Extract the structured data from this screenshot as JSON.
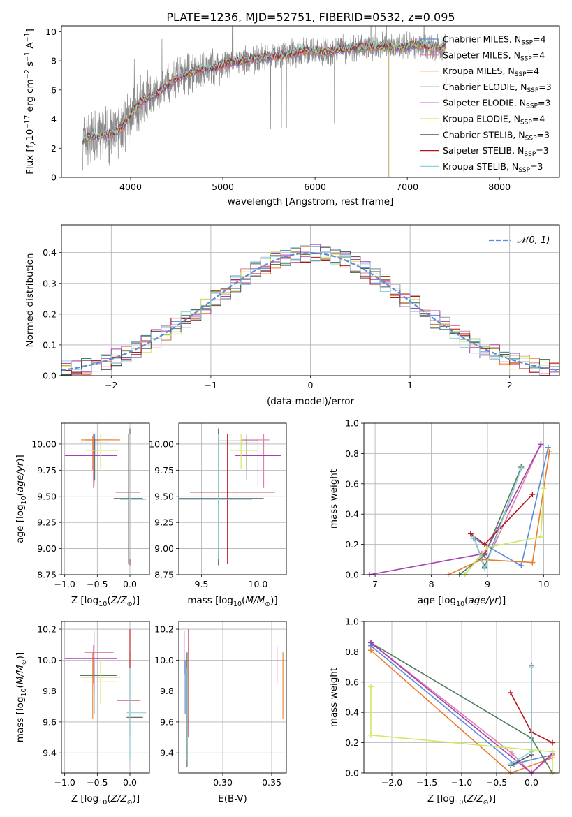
{
  "figure_title": "PLATE=1236, MJD=52751, FIBERID=0532, z=0.095",
  "colors": {
    "chabrier_miles": "#5b8bd9",
    "salpeter_miles": "#e07aa8",
    "kroupa_miles": "#e87d2e",
    "chabrier_elodie": "#4f7f5e",
    "salpeter_elodie": "#a63fb5",
    "kroupa_elodie": "#d2e85e",
    "chabrier_stelib": "#555555",
    "salpeter_stelib": "#b3171d",
    "kroupa_stelib": "#8fd3d8",
    "data": "#8a8a8a",
    "normal": "#5b8bd9",
    "grid": "#b0b0b0"
  },
  "legend": [
    {
      "label": "Chabrier MILES, N",
      "sub": "SSP",
      "tail": "=4",
      "color_key": "chabrier_miles"
    },
    {
      "label": "Salpeter MILES, N",
      "sub": "SSP",
      "tail": "=4",
      "color_key": "salpeter_miles"
    },
    {
      "label": "Kroupa MILES, N",
      "sub": "SSP",
      "tail": "=4",
      "color_key": "kroupa_miles"
    },
    {
      "label": "Chabrier ELODIE, N",
      "sub": "SSP",
      "tail": "=3",
      "color_key": "chabrier_elodie"
    },
    {
      "label": "Salpeter ELODIE, N",
      "sub": "SSP",
      "tail": "=3",
      "color_key": "salpeter_elodie"
    },
    {
      "label": "Kroupa ELODIE, N",
      "sub": "SSP",
      "tail": "=4",
      "color_key": "kroupa_elodie"
    },
    {
      "label": "Chabrier STELIB, N",
      "sub": "SSP",
      "tail": "=3",
      "color_key": "chabrier_stelib"
    },
    {
      "label": "Salpeter STELIB, N",
      "sub": "SSP",
      "tail": "=3",
      "color_key": "salpeter_stelib"
    },
    {
      "label": "Kroupa STELIB, N",
      "sub": "SSP",
      "tail": "=3",
      "color_key": "kroupa_stelib"
    }
  ],
  "chart_data": [
    {
      "id": "spectrum",
      "type": "line",
      "xlabel": "wavelength [Angstrom, rest frame]",
      "ylabel": "Flux [f",
      "ylabel_parts": [
        "Flux [f",
        "λ",
        "10",
        "−17",
        " erg cm",
        "−2",
        " s",
        "−1",
        " A",
        "−1",
        "]"
      ],
      "xlim": [
        3250,
        8650
      ],
      "ylim": [
        0,
        10.4
      ],
      "xticks": [
        4000,
        5000,
        6000,
        7000,
        8000
      ],
      "yticks": [
        0,
        2,
        4,
        6,
        8,
        10
      ],
      "grid": false,
      "legend_position": "upper right",
      "continuum": {
        "x": [
          3480,
          3600,
          3700,
          3800,
          3900,
          4000,
          4100,
          4200,
          4300,
          4400,
          4500,
          4700,
          4900,
          5100,
          5300,
          5500,
          5700,
          5900,
          6100,
          6300,
          6500,
          6700,
          6900,
          7100,
          7300,
          7420
        ],
        "y": [
          2.6,
          2.8,
          2.9,
          3.0,
          3.4,
          4.3,
          5.1,
          5.5,
          5.8,
          6.3,
          6.8,
          7.3,
          7.5,
          7.9,
          8.1,
          8.3,
          8.4,
          8.7,
          8.6,
          8.8,
          8.9,
          9.0,
          8.9,
          9.1,
          8.9,
          9.0
        ]
      },
      "data_x_range": [
        3480,
        7420
      ]
    },
    {
      "id": "residuals",
      "type": "histogram",
      "xlabel": "(data-model)/error",
      "ylabel": "Normed distribution",
      "xlim": [
        -2.5,
        2.5
      ],
      "ylim": [
        0,
        0.49
      ],
      "xticks": [
        -2,
        -1,
        0,
        1,
        2
      ],
      "yticks": [
        0.0,
        0.1,
        0.2,
        0.3,
        0.4
      ],
      "grid": true,
      "bin_width": 0.1,
      "normal_label": "𝒩(0, 1)",
      "legend_position": "upper right"
    },
    {
      "id": "age_vs_Z",
      "type": "errorbar",
      "xlabel": "Z [log",
      "xlabel_parts": [
        "Z [log",
        "10",
        "(Z/Z",
        "⊙",
        ")]"
      ],
      "ylabel_parts": [
        "age  [log",
        "10",
        "(age/yr)]"
      ],
      "xlim": [
        -1.05,
        0.3
      ],
      "ylim": [
        8.75,
        10.2
      ],
      "xticks": [
        -1.0,
        -0.5,
        0.0
      ],
      "yticks": [
        8.75,
        9.0,
        9.25,
        9.5,
        9.75,
        10.0
      ],
      "grid": true,
      "points": [
        {
          "c": "chabrier_miles",
          "x": -0.54,
          "xe": [
            -0.77,
            -0.3
          ],
          "y": 10.01,
          "ye": [
            9.9,
            10.1
          ]
        },
        {
          "c": "salpeter_miles",
          "x": -0.56,
          "xe": [
            -0.7,
            -0.25
          ],
          "y": 10.04,
          "ye": [
            9.58,
            10.1
          ]
        },
        {
          "c": "kroupa_miles",
          "x": -0.57,
          "xe": [
            -0.75,
            -0.15
          ],
          "y": 10.04,
          "ye": [
            9.75,
            10.08
          ]
        },
        {
          "c": "chabrier_elodie",
          "x": -0.54,
          "xe": [
            -0.7,
            -0.45
          ],
          "y": 10.03,
          "ye": [
            9.65,
            10.05
          ]
        },
        {
          "c": "salpeter_elodie",
          "x": -0.55,
          "xe": [
            -1.0,
            -0.2
          ],
          "y": 9.89,
          "ye": [
            9.6,
            10.06
          ]
        },
        {
          "c": "kroupa_elodie",
          "x": -0.45,
          "xe": [
            -0.68,
            -0.18
          ],
          "y": 9.94,
          "ye": [
            9.76,
            10.1
          ]
        },
        {
          "c": "chabrier_stelib",
          "x": 0.0,
          "xe": [
            -0.25,
            0.2
          ],
          "y": 9.48,
          "ye": [
            8.84,
            10.15
          ]
        },
        {
          "c": "salpeter_stelib",
          "x": -0.02,
          "xe": [
            -0.22,
            0.15
          ],
          "y": 9.54,
          "ye": [
            8.85,
            10.1
          ]
        },
        {
          "c": "kroupa_stelib",
          "x": 0.0,
          "xe": [
            -0.15,
            0.25
          ],
          "y": 9.47,
          "ye": [
            8.9,
            10.1
          ]
        }
      ]
    },
    {
      "id": "age_vs_mass",
      "type": "errorbar",
      "xlabel_parts": [
        "mass [log",
        "10",
        "(M/M",
        "⊙",
        ")]"
      ],
      "xlim": [
        9.3,
        10.25
      ],
      "ylim": [
        8.75,
        10.2
      ],
      "xticks": [
        9.5,
        10.0
      ],
      "yticks": [
        8.75,
        9.0,
        9.25,
        9.5,
        9.75,
        10.0
      ],
      "grid": true,
      "points": [
        {
          "c": "chabrier_miles",
          "x": 9.9,
          "xe": [
            9.65,
            10.0
          ],
          "y": 10.01,
          "ye": [
            9.9,
            10.1
          ]
        },
        {
          "c": "salpeter_miles",
          "x": 10.05,
          "xe": [
            9.85,
            10.1
          ],
          "y": 10.04,
          "ye": [
            9.58,
            10.1
          ]
        },
        {
          "c": "kroupa_miles",
          "x": 9.9,
          "xe": [
            9.65,
            10.0
          ],
          "y": 10.03,
          "ye": [
            9.75,
            10.08
          ]
        },
        {
          "c": "chabrier_elodie",
          "x": 9.9,
          "xe": [
            9.65,
            10.0
          ],
          "y": 10.03,
          "ye": [
            9.65,
            10.05
          ]
        },
        {
          "c": "salpeter_elodie",
          "x": 10.0,
          "xe": [
            9.8,
            10.2
          ],
          "y": 9.89,
          "ye": [
            9.6,
            10.06
          ]
        },
        {
          "c": "kroupa_elodie",
          "x": 9.85,
          "xe": [
            9.75,
            10.0
          ],
          "y": 9.94,
          "ye": [
            9.76,
            10.1
          ]
        },
        {
          "c": "chabrier_stelib",
          "x": 9.65,
          "xe": [
            9.3,
            10.05
          ],
          "y": 9.48,
          "ye": [
            8.84,
            10.15
          ]
        },
        {
          "c": "salpeter_stelib",
          "x": 9.73,
          "xe": [
            9.4,
            10.15
          ],
          "y": 9.54,
          "ye": [
            8.85,
            10.1
          ]
        },
        {
          "c": "kroupa_stelib",
          "x": 9.65,
          "xe": [
            9.3,
            9.95
          ],
          "y": 9.47,
          "ye": [
            8.9,
            10.1
          ]
        }
      ]
    },
    {
      "id": "weight_vs_age",
      "type": "line",
      "xlabel_parts": [
        "age  [log",
        "10",
        "(age/yr)]"
      ],
      "ylabel": "mass weight",
      "xlim": [
        6.8,
        10.28
      ],
      "ylim": [
        0,
        1.0
      ],
      "xticks": [
        7,
        8,
        9,
        10
      ],
      "yticks": [
        0.0,
        0.2,
        0.4,
        0.6,
        0.8,
        1.0
      ],
      "grid": true,
      "series": [
        {
          "c": "chabrier_miles",
          "x": [
            8.75,
            9.6,
            10.08
          ],
          "y": [
            0.24,
            0.06,
            0.84
          ]
        },
        {
          "c": "salpeter_miles",
          "x": [
            8.6,
            8.9,
            9.0,
            9.95
          ],
          "y": [
            0.0,
            0.14,
            0.1,
            0.86
          ]
        },
        {
          "c": "kroupa_miles",
          "x": [
            8.3,
            8.9,
            9.8,
            10.1
          ],
          "y": [
            0.0,
            0.1,
            0.08,
            0.81
          ]
        },
        {
          "c": "chabrier_elodie",
          "x": [
            8.5,
            8.95,
            9.6
          ],
          "y": [
            0.0,
            0.13,
            0.71
          ]
        },
        {
          "c": "salpeter_elodie",
          "x": [
            6.9,
            8.95,
            9.95
          ],
          "y": [
            0.0,
            0.14,
            0.86
          ]
        },
        {
          "c": "kroupa_elodie",
          "x": [
            8.6,
            9.0,
            9.95,
            10.0
          ],
          "y": [
            0.0,
            0.18,
            0.25,
            0.57
          ]
        },
        {
          "c": "chabrier_stelib",
          "x": [
            8.75,
            8.95,
            9.6
          ],
          "y": [
            0.25,
            0.05,
            0.7
          ]
        },
        {
          "c": "salpeter_stelib",
          "x": [
            8.7,
            8.95,
            9.8
          ],
          "y": [
            0.27,
            0.2,
            0.53
          ]
        },
        {
          "c": "kroupa_stelib",
          "x": [
            8.75,
            8.95,
            9.6
          ],
          "y": [
            0.25,
            0.04,
            0.7
          ]
        }
      ]
    },
    {
      "id": "mass_vs_Z",
      "type": "errorbar",
      "xlabel_parts": [
        "Z [log",
        "10",
        "(Z/Z",
        "⊙",
        ")]"
      ],
      "ylabel_parts": [
        "mass [log",
        "10",
        "(M/M",
        "⊙",
        ")]"
      ],
      "xlim": [
        -1.05,
        0.3
      ],
      "ylim": [
        9.27,
        10.25
      ],
      "xticks": [
        -1.0,
        -0.5,
        0.0
      ],
      "yticks": [
        9.4,
        9.6,
        9.8,
        10.0,
        10.2
      ],
      "grid": true,
      "points": [
        {
          "c": "chabrier_miles",
          "x": -0.55,
          "xe": [
            -0.75,
            -0.3
          ],
          "y": 9.9,
          "ye": [
            9.65,
            10.0
          ]
        },
        {
          "c": "salpeter_miles",
          "x": -0.56,
          "xe": [
            -0.7,
            -0.25
          ],
          "y": 10.05,
          "ye": [
            9.85,
            10.1
          ]
        },
        {
          "c": "kroupa_miles",
          "x": -0.57,
          "xe": [
            -0.75,
            -0.15
          ],
          "y": 9.89,
          "ye": [
            9.62,
            10.05
          ]
        },
        {
          "c": "chabrier_elodie",
          "x": -0.55,
          "xe": [
            -0.77,
            -0.2
          ],
          "y": 9.9,
          "ye": [
            9.65,
            10.0
          ]
        },
        {
          "c": "salpeter_elodie",
          "x": -0.55,
          "xe": [
            -1.0,
            -0.2
          ],
          "y": 10.01,
          "ye": [
            9.8,
            10.19
          ]
        },
        {
          "c": "kroupa_elodie",
          "x": -0.45,
          "xe": [
            -0.68,
            -0.18
          ],
          "y": 9.86,
          "ye": [
            9.72,
            10.0
          ]
        },
        {
          "c": "chabrier_stelib",
          "x": 0.0,
          "xe": [
            -0.05,
            0.2
          ],
          "y": 9.63,
          "ye": [
            9.35,
            10.05
          ]
        },
        {
          "c": "salpeter_stelib",
          "x": 0.0,
          "xe": [
            -0.2,
            0.15
          ],
          "y": 9.74,
          "ye": [
            9.5,
            10.2
          ]
        },
        {
          "c": "kroupa_stelib",
          "x": 0.0,
          "xe": [
            -0.05,
            0.25
          ],
          "y": 9.66,
          "ye": [
            9.35,
            9.95
          ]
        }
      ]
    },
    {
      "id": "mass_vs_ebv",
      "type": "errorbar",
      "xlabel": "E(B-V)",
      "xlim": [
        0.255,
        0.365
      ],
      "ylim": [
        9.27,
        10.25
      ],
      "xticks": [
        0.3,
        0.35
      ],
      "yticks": [
        9.4,
        9.6,
        9.8,
        10.0,
        10.2
      ],
      "grid": true,
      "points": [
        {
          "c": "chabrier_miles",
          "x": 0.2615,
          "y": 9.9,
          "ye": [
            9.65,
            10.0
          ]
        },
        {
          "c": "salpeter_miles",
          "x": 0.3555,
          "y": 10.05,
          "ye": [
            9.85,
            10.09
          ]
        },
        {
          "c": "kroupa_miles",
          "x": 0.3615,
          "y": 9.89,
          "ye": [
            9.62,
            10.05
          ]
        },
        {
          "c": "chabrier_elodie",
          "x": 0.2625,
          "y": 9.9,
          "ye": [
            9.65,
            10.0
          ]
        },
        {
          "c": "salpeter_elodie",
          "x": 0.2605,
          "y": 10.01,
          "ye": [
            9.91,
            10.19
          ]
        },
        {
          "c": "kroupa_elodie",
          "x": 0.263,
          "y": 9.86,
          "ye": [
            9.72,
            10.0
          ]
        },
        {
          "c": "chabrier_stelib",
          "x": 0.2635,
          "y": 9.63,
          "ye": [
            9.31,
            10.05
          ]
        },
        {
          "c": "salpeter_stelib",
          "x": 0.265,
          "y": 9.74,
          "ye": [
            9.5,
            10.2
          ]
        },
        {
          "c": "kroupa_stelib",
          "x": 0.263,
          "y": 9.66,
          "ye": [
            9.35,
            9.95
          ]
        }
      ]
    },
    {
      "id": "weight_vs_Z",
      "type": "line",
      "xlabel_parts": [
        "Z [log",
        "10",
        "(Z/Z",
        "⊙",
        ")]"
      ],
      "ylabel": "mass weight",
      "xlim": [
        -2.4,
        0.4
      ],
      "ylim": [
        0,
        1.0
      ],
      "xticks": [
        -2.0,
        -1.5,
        -1.0,
        -0.5,
        0.0
      ],
      "yticks": [
        0.0,
        0.2,
        0.4,
        0.6,
        0.8,
        1.0
      ],
      "grid": true,
      "series": [
        {
          "c": "chabrier_miles",
          "x": [
            -2.3,
            -0.25,
            0.3
          ],
          "y": [
            0.84,
            0.06,
            0.12
          ]
        },
        {
          "c": "salpeter_miles",
          "x": [
            -2.3,
            -0.28,
            0.0,
            0.3
          ],
          "y": [
            0.86,
            0.13,
            0.0,
            0.12
          ]
        },
        {
          "c": "kroupa_miles",
          "x": [
            -2.3,
            -0.3,
            0.3
          ],
          "y": [
            0.81,
            0.0,
            0.1
          ]
        },
        {
          "c": "chabrier_elodie",
          "x": [
            -2.3,
            0.0,
            0.3
          ],
          "y": [
            0.86,
            0.23,
            0.0
          ]
        },
        {
          "c": "salpeter_elodie",
          "x": [
            -2.3,
            0.0,
            0.3
          ],
          "y": [
            0.86,
            0.0,
            0.13
          ]
        },
        {
          "c": "kroupa_elodie",
          "x": [
            -2.3,
            -2.3,
            0.3,
            0.3
          ],
          "y": [
            0.57,
            0.25,
            0.14,
            0.0
          ]
        },
        {
          "c": "chabrier_stelib",
          "x": [
            -0.3,
            0.0,
            0.0
          ],
          "y": [
            0.05,
            0.12,
            0.71
          ]
        },
        {
          "c": "salpeter_stelib",
          "x": [
            -0.3,
            0.0,
            0.3
          ],
          "y": [
            0.53,
            0.27,
            0.2
          ]
        },
        {
          "c": "kroupa_stelib",
          "x": [
            -0.3,
            0.0,
            0.0
          ],
          "y": [
            0.06,
            0.14,
            0.7
          ]
        }
      ]
    }
  ]
}
